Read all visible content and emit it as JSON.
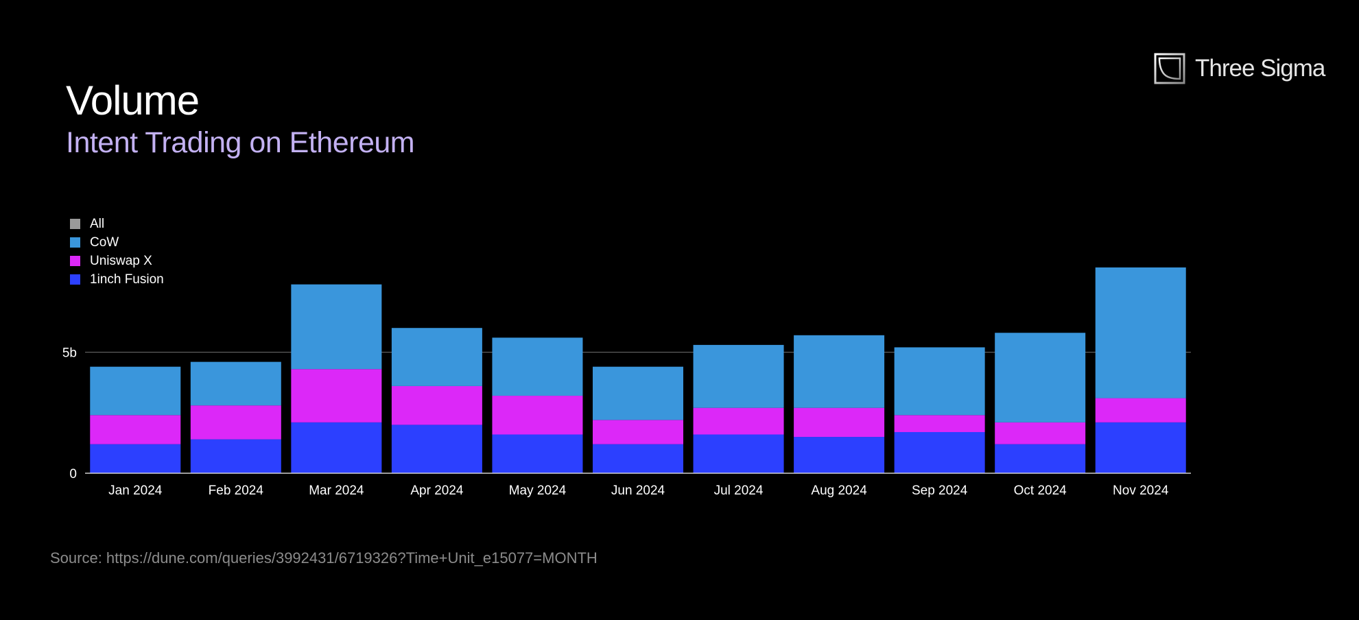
{
  "header": {
    "title": "Volume",
    "subtitle": "Intent Trading on Ethereum"
  },
  "brand": {
    "name": "Three Sigma",
    "icon": "three-sigma-logo-icon"
  },
  "footer": {
    "source": "Source: https://dune.com/queries/3992431/6719326?Time+Unit_e15077=MONTH"
  },
  "colors": {
    "background": "#000000",
    "subtitle": "#c3b1f2",
    "all": "#9a9a9a",
    "cow": "#3a96dc",
    "uniswap_x": "#dc28f8",
    "oneinch_fusion": "#2c40ff"
  },
  "legend": [
    {
      "label": "All",
      "color": "#9a9a9a"
    },
    {
      "label": "CoW",
      "color": "#3a96dc"
    },
    {
      "label": "Uniswap X",
      "color": "#dc28f8"
    },
    {
      "label": "1inch Fusion",
      "color": "#2c40ff"
    }
  ],
  "chart_data": {
    "type": "bar",
    "stacked": true,
    "title": "Volume",
    "subtitle": "Intent Trading on Ethereum",
    "xlabel": "",
    "ylabel": "",
    "ylim": [
      0,
      8.7
    ],
    "yticks": [
      {
        "value": 0,
        "label": "0"
      },
      {
        "value": 5,
        "label": "5b"
      }
    ],
    "categories": [
      "Jan 2024",
      "Feb 2024",
      "Mar 2024",
      "Apr 2024",
      "May 2024",
      "Jun 2024",
      "Jul 2024",
      "Aug 2024",
      "Sep 2024",
      "Oct 2024",
      "Nov 2024"
    ],
    "series": [
      {
        "name": "1inch Fusion",
        "color": "#2c40ff",
        "values": [
          1.2,
          1.4,
          2.1,
          2.0,
          1.6,
          1.2,
          1.6,
          1.5,
          1.7,
          1.2,
          2.1
        ]
      },
      {
        "name": "Uniswap X",
        "color": "#dc28f8",
        "values": [
          1.2,
          1.4,
          2.2,
          1.6,
          1.6,
          1.0,
          1.1,
          1.2,
          0.7,
          0.9,
          1.0
        ]
      },
      {
        "name": "CoW",
        "color": "#3a96dc",
        "values": [
          2.0,
          1.8,
          3.5,
          2.4,
          2.4,
          2.2,
          2.6,
          3.0,
          2.8,
          3.7,
          5.4
        ]
      }
    ],
    "grid": "horizontal",
    "legend_position": "top-left"
  }
}
